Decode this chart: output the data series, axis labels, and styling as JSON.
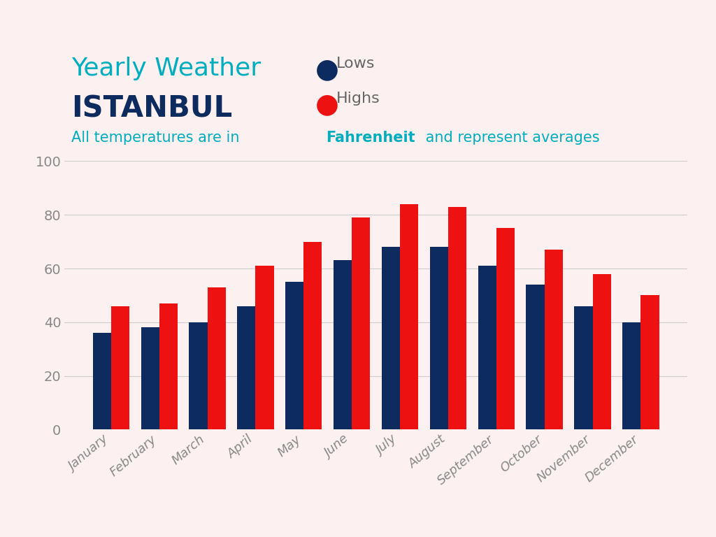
{
  "title_line1": "Yearly Weather",
  "title_line2": "ISTANBUL",
  "months": [
    "January",
    "February",
    "March",
    "April",
    "May",
    "June",
    "July",
    "August",
    "September",
    "October",
    "November",
    "December"
  ],
  "lows": [
    36,
    38,
    40,
    46,
    55,
    63,
    68,
    68,
    61,
    54,
    46,
    40
  ],
  "highs": [
    46,
    47,
    53,
    61,
    70,
    79,
    84,
    83,
    75,
    67,
    58,
    50
  ],
  "bar_color_lows": "#0d2b5e",
  "bar_color_highs": "#ee1111",
  "background_color": "#fdf0f0",
  "title_color1": "#00aec0",
  "title_color2": "#0d2b5e",
  "subtitle_color": "#00aec0",
  "legend_text_color": "#666666",
  "tick_color": "#888888",
  "grid_color": "#cccccc",
  "ylim": [
    0,
    100
  ],
  "yticks": [
    0,
    20,
    40,
    60,
    80,
    100
  ],
  "title1_fontsize": 26,
  "title2_fontsize": 30,
  "subtitle_fontsize": 15,
  "legend_fontsize": 16
}
